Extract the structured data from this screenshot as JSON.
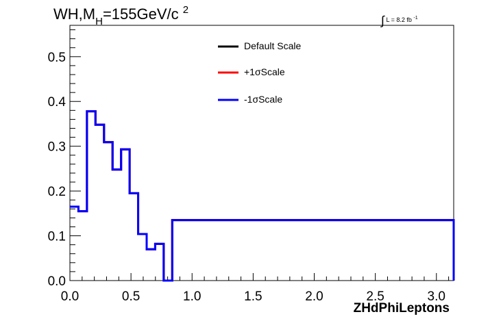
{
  "title": {
    "prefix": "WH,M",
    "sub": "H",
    "main": "=155GeV/c",
    "sup": "2"
  },
  "luminosity": {
    "integral": "∫",
    "text": "L = 8.2 fb",
    "sup": "-1"
  },
  "chart_data": {
    "type": "line",
    "style": "step-histogram",
    "xlabel": "ZHdPhiLeptons",
    "ylabel": "",
    "xlim": [
      0,
      3.14159
    ],
    "ylim": [
      0,
      0.57
    ],
    "x_ticks": [
      "0.0",
      "0.5",
      "1.0",
      "1.5",
      "2.0",
      "2.5",
      "3.0"
    ],
    "y_ticks": [
      "0.0",
      "0.1",
      "0.2",
      "0.3",
      "0.4",
      "0.5"
    ],
    "grid": false,
    "legend_placement": "top-right",
    "bin_edges": [
      0.0,
      0.0698,
      0.1396,
      0.2094,
      0.2793,
      0.3491,
      0.4189,
      0.4887,
      0.5585,
      0.6283,
      0.6981,
      0.7679,
      0.8378,
      3.14159
    ],
    "series": [
      {
        "name": "Default Scale",
        "color": "#000000",
        "values": [
          0.165,
          0.155,
          0.378,
          0.348,
          0.309,
          0.248,
          0.293,
          0.195,
          0.104,
          0.07,
          0.082,
          0.0,
          0.135,
          0.0
        ]
      },
      {
        "name": "+1σScale",
        "color": "#ff0000",
        "values": [
          0.165,
          0.155,
          0.378,
          0.348,
          0.309,
          0.248,
          0.293,
          0.195,
          0.104,
          0.07,
          0.082,
          0.0,
          0.135,
          0.0
        ]
      },
      {
        "name": "-1σScale",
        "color": "#0000ff",
        "values": [
          0.165,
          0.155,
          0.378,
          0.348,
          0.309,
          0.248,
          0.293,
          0.195,
          0.104,
          0.07,
          0.082,
          0.0,
          0.135,
          0.0
        ]
      }
    ]
  }
}
